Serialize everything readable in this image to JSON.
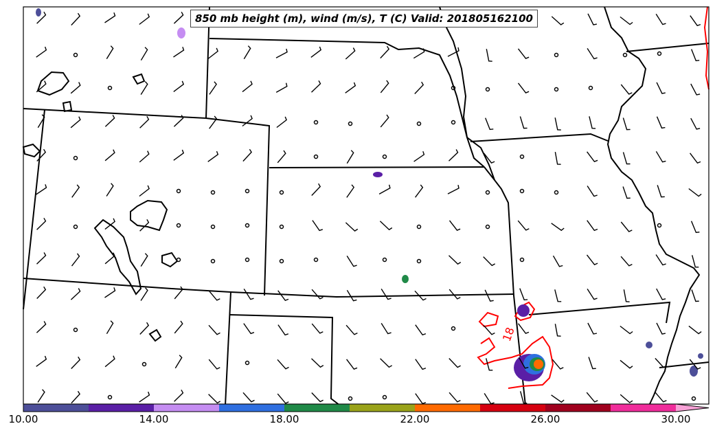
{
  "title": "850 mb height (m), wind (m/s), T (C) Valid: 201805162100",
  "contour_label": "18",
  "colorbar": {
    "tick_labels": [
      "10.00",
      "14.00",
      "18.00",
      "22.00",
      "26.00",
      "30.00"
    ],
    "colors": [
      "#4d4f99",
      "#5a1fa6",
      "#c58df2",
      "#2f6fe0",
      "#208a48",
      "#9aa31a",
      "#ff6a00",
      "#d60010",
      "#a0001e",
      "#f02d9b",
      "#f7a1d6"
    ],
    "range": [
      10,
      31
    ],
    "extend": "max"
  },
  "colors": {
    "state_lines": "#000000",
    "isotherm": "#ff0000",
    "title_border": "#444444"
  }
}
